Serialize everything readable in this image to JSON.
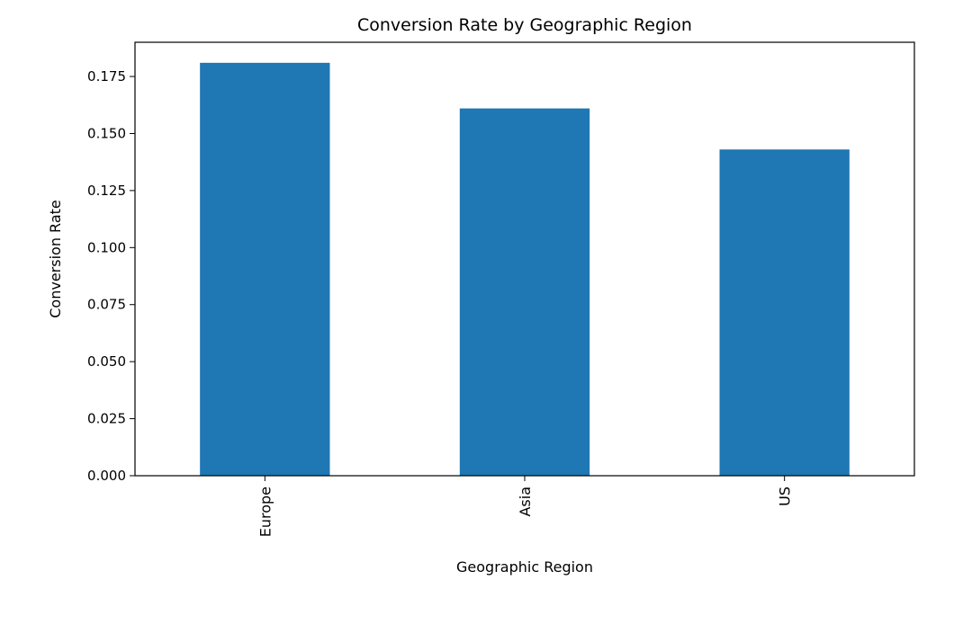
{
  "chart_data": {
    "type": "bar",
    "title": "Conversion Rate by Geographic Region",
    "xlabel": "Geographic Region",
    "ylabel": "Conversion Rate",
    "categories": [
      "Europe",
      "Asia",
      "US"
    ],
    "values": [
      0.181,
      0.161,
      0.143
    ],
    "ylim": [
      0,
      0.19
    ],
    "yticks": [
      "0.000",
      "0.025",
      "0.050",
      "0.075",
      "0.100",
      "0.125",
      "0.150",
      "0.175"
    ],
    "grid": false,
    "bar_color": "#1f77b4"
  }
}
